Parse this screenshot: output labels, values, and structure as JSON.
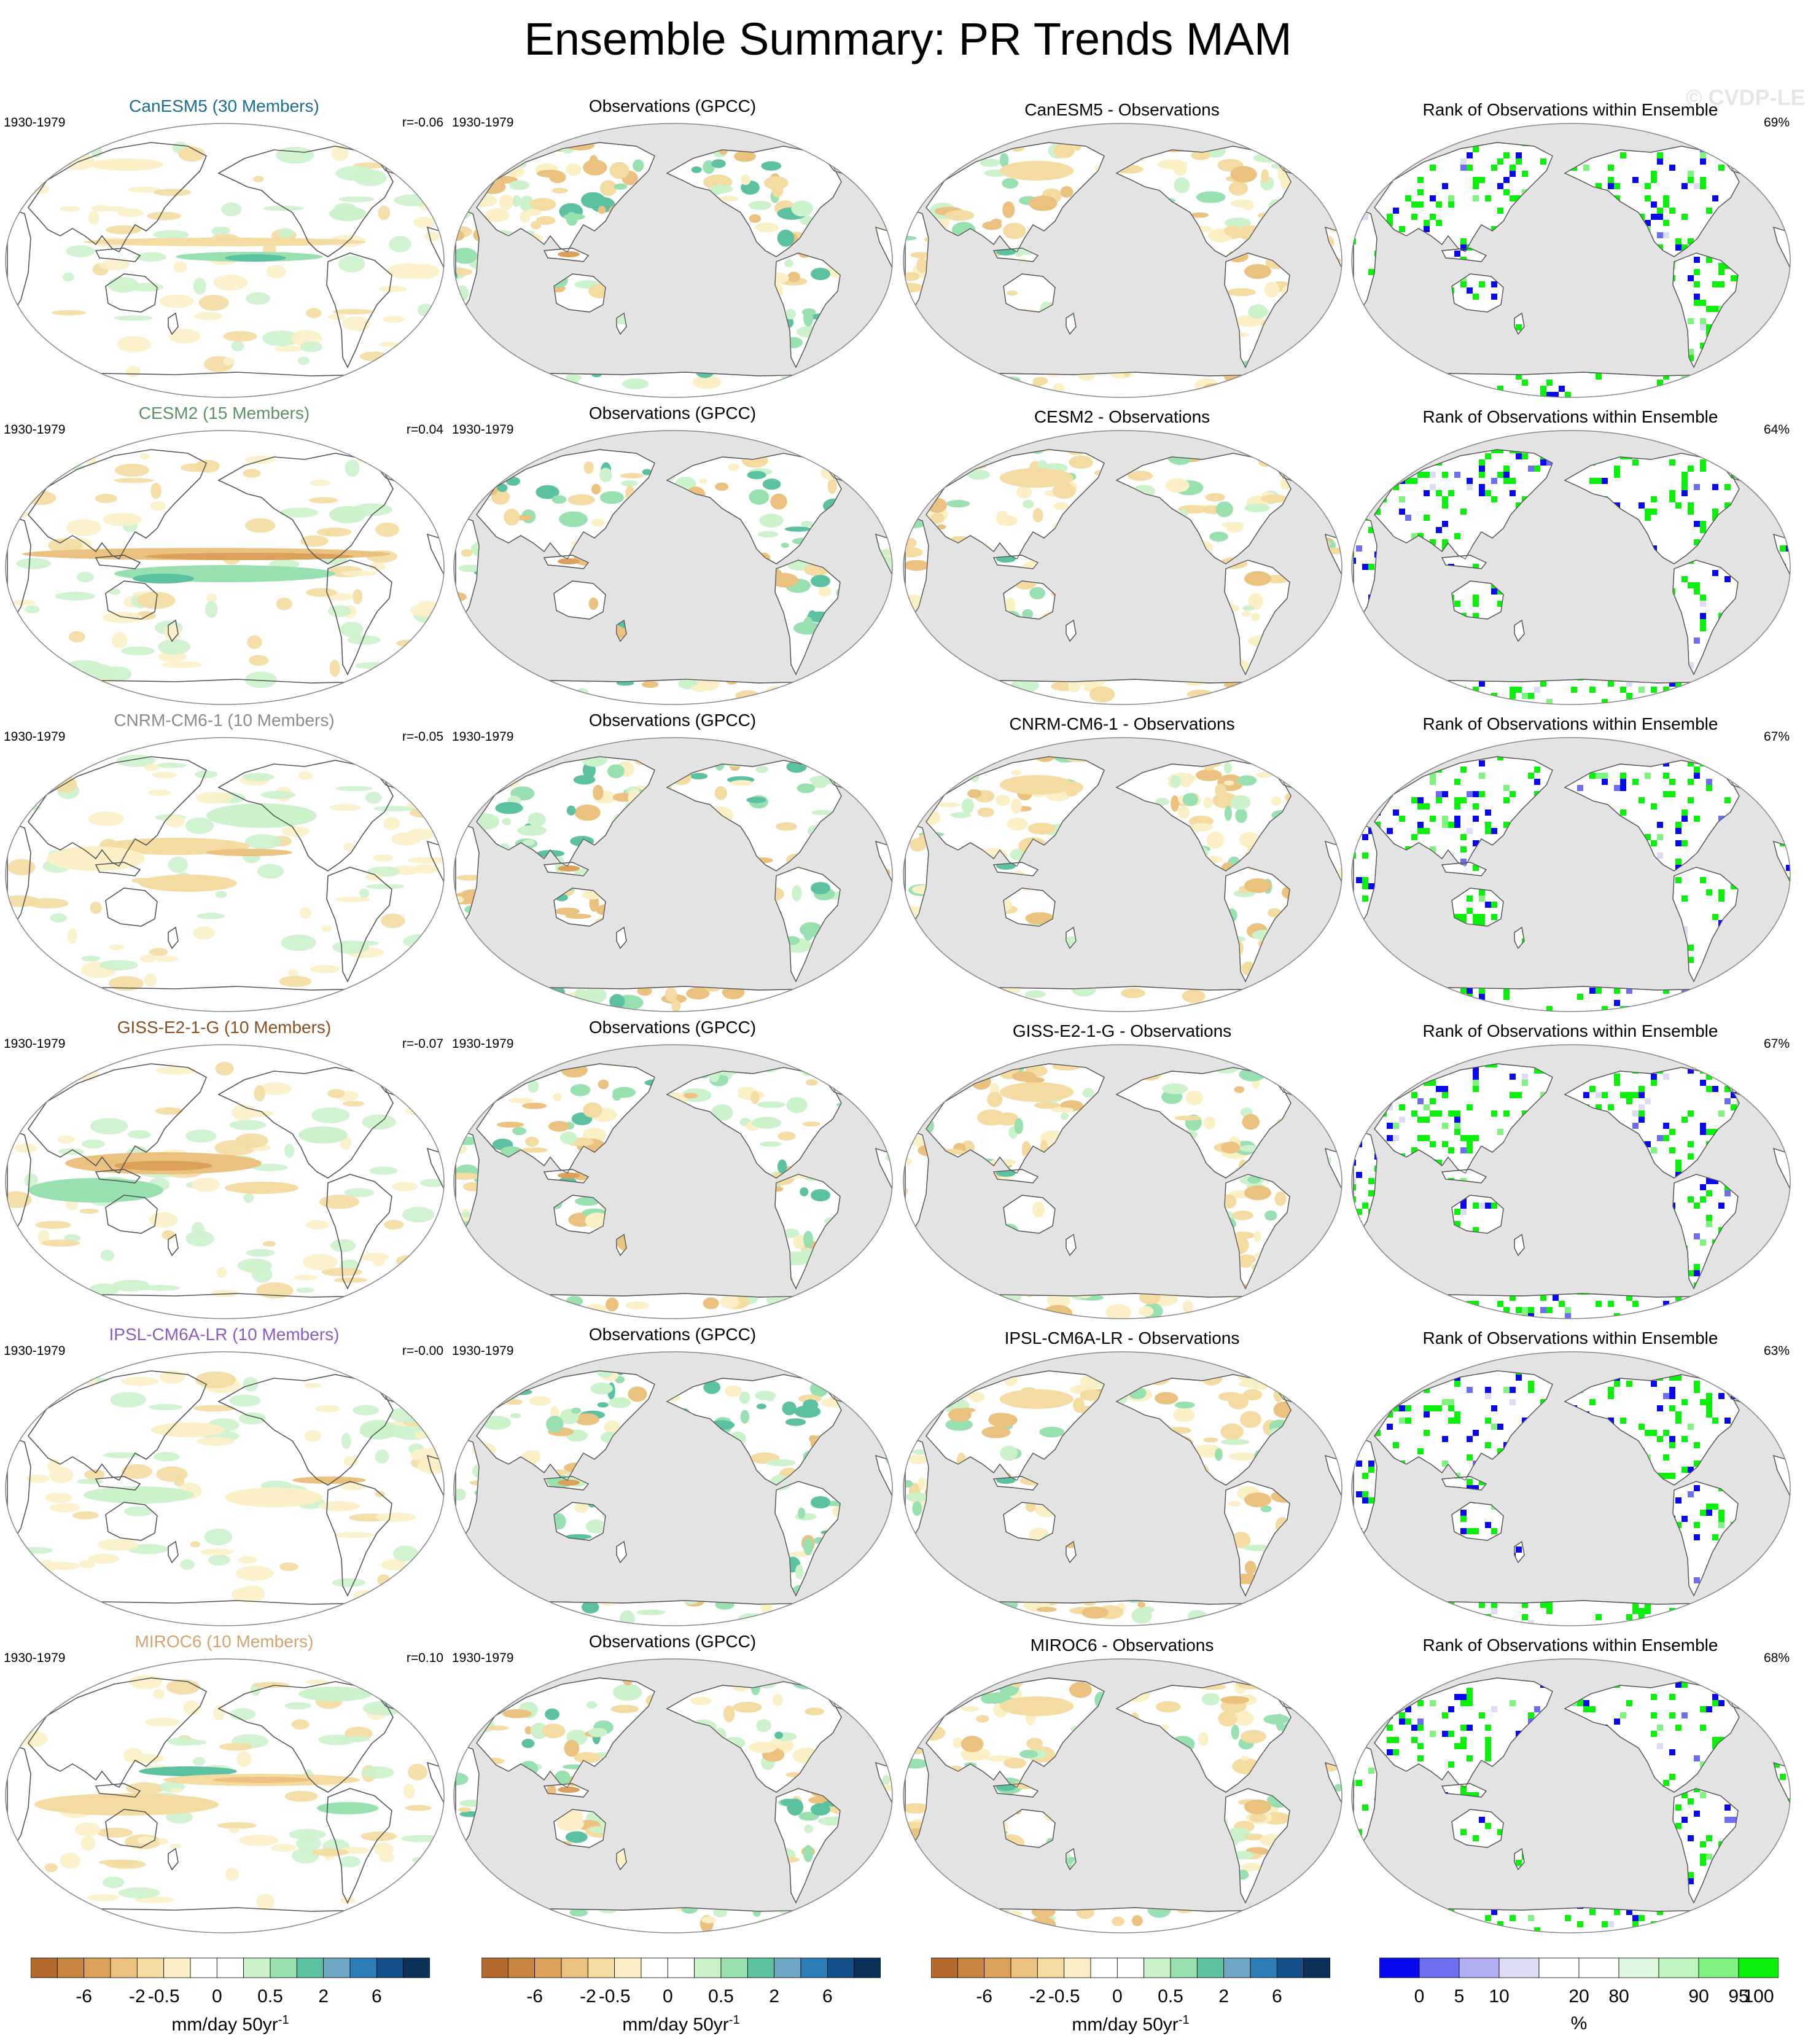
{
  "title": "Ensemble Summary: PR Trends MAM",
  "watermark": "© CVDP-LE",
  "period": "1930-1979",
  "rows": [
    {
      "model_title": "CanESM5 (30 Members)",
      "title_color": "#1a6e96",
      "r": "r=-0.06",
      "obs_title": "Observations (GPCC)",
      "diff_title": "CanESM5 - Observations",
      "rank_title": "Rank of Observations within Ensemble",
      "rank_pct": "69%"
    },
    {
      "model_title": "CESM2 (15 Members)",
      "title_color": "#5f9166",
      "r": "r=0.04",
      "obs_title": "Observations (GPCC)",
      "diff_title": "CESM2 - Observations",
      "rank_title": "Rank of Observations within Ensemble",
      "rank_pct": "64%"
    },
    {
      "model_title": "CNRM-CM6-1 (10 Members)",
      "title_color": "#8c8c8c",
      "r": "r=-0.05",
      "obs_title": "Observations (GPCC)",
      "diff_title": "CNRM-CM6-1 - Observations",
      "rank_title": "Rank of Observations within Ensemble",
      "rank_pct": "67%"
    },
    {
      "model_title": "GISS-E2-1-G (10 Members)",
      "title_color": "#8a4f21",
      "r": "r=-0.07",
      "obs_title": "Observations (GPCC)",
      "diff_title": "GISS-E2-1-G - Observations",
      "rank_title": "Rank of Observations within Ensemble",
      "rank_pct": "67%"
    },
    {
      "model_title": "IPSL-CM6A-LR (10 Members)",
      "title_color": "#8a5cc4",
      "r": "r=-0.00",
      "obs_title": "Observations (GPCC)",
      "diff_title": "IPSL-CM6A-LR - Observations",
      "rank_title": "Rank of Observations within Ensemble",
      "rank_pct": "63%"
    },
    {
      "model_title": "MIROC6 (10 Members)",
      "title_color": "#d2a56e",
      "r": "r=0.10",
      "obs_title": "Observations (GPCC)",
      "diff_title": "MIROC6 - Observations",
      "rank_title": "Rank of Observations within Ensemble",
      "rank_pct": "68%"
    }
  ],
  "colors": {
    "land_mask": "#e3e3e3",
    "coast": "#555555",
    "trend_palette": [
      "#b46a2c",
      "#c8853f",
      "#dba15b",
      "#eac17f",
      "#f3dba1",
      "#fbefc6",
      "#ffffff",
      "#ffffff",
      "#ccf2cc",
      "#98e0b0",
      "#5cc1a0",
      "#6fa6c4",
      "#2f7db6",
      "#154f8a",
      "#0a3258"
    ],
    "rank_palette": [
      "#0a0af0",
      "#6e6ef0",
      "#aeaef0",
      "#dcdcf5",
      "#ffffff",
      "#ffffff",
      "#e0f7e0",
      "#bff5bf",
      "#7ff27f",
      "#0af00a"
    ]
  },
  "colorbars": [
    {
      "labels": [
        "-6",
        "-2",
        "-0.5",
        "0",
        "0.5",
        "2",
        "6"
      ],
      "unit": "mm/day 50yr",
      "unit_sup": "-1"
    },
    {
      "labels": [
        "-6",
        "-2",
        "-0.5",
        "0",
        "0.5",
        "2",
        "6"
      ],
      "unit": "mm/day 50yr",
      "unit_sup": "-1"
    },
    {
      "labels": [
        "-6",
        "-2",
        "-0.5",
        "0",
        "0.5",
        "2",
        "6"
      ],
      "unit": "mm/day 50yr",
      "unit_sup": "-1"
    },
    {
      "labels": [
        "0",
        "5",
        "10",
        "20",
        "80",
        "90",
        "95",
        "100"
      ],
      "unit": "%",
      "unit_sup": ""
    }
  ]
}
